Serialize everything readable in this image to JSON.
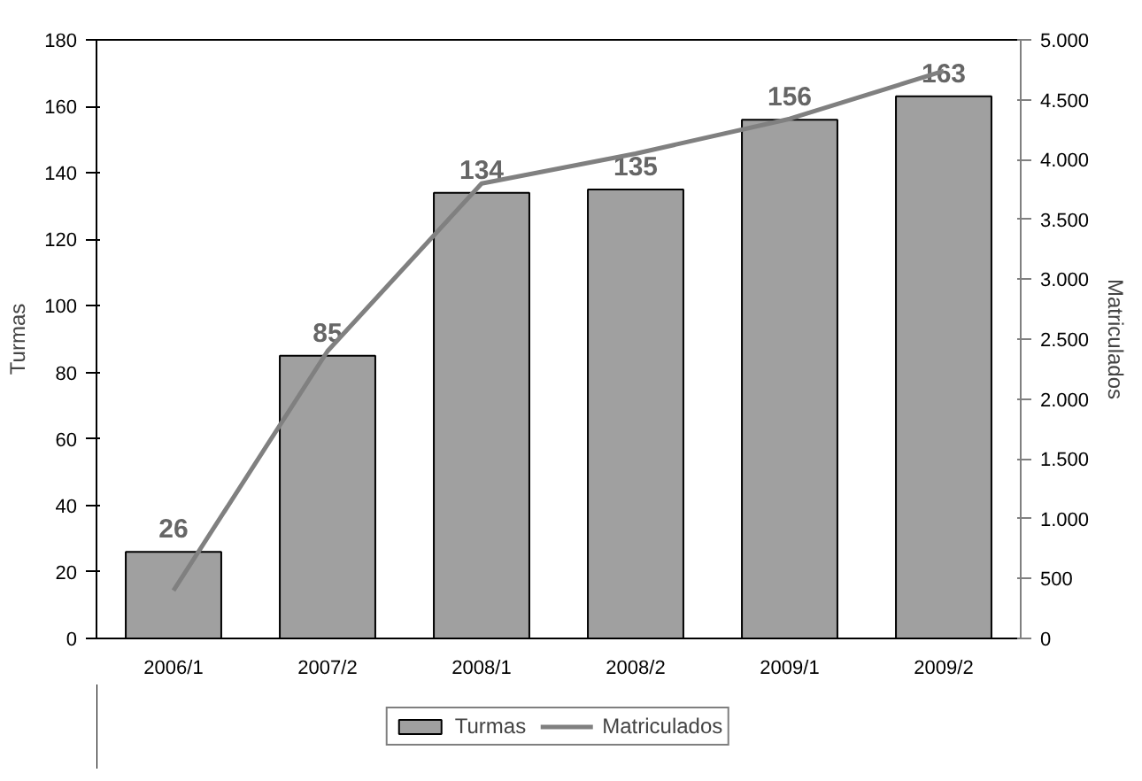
{
  "chart_data": {
    "type": "bar",
    "categories": [
      "2006/1",
      "2007/2",
      "2008/1",
      "2008/2",
      "2009/1",
      "2009/2"
    ],
    "series": [
      {
        "name": "Turmas",
        "color": "#a0a0a0",
        "values": [
          26,
          85,
          134,
          135,
          156,
          163
        ],
        "value_labels": [
          "26",
          "85",
          "134",
          "135",
          "156",
          "163"
        ]
      },
      {
        "name": "Matriculados",
        "type": "line",
        "axis": "y2",
        "color": "#808080",
        "values": [
          400,
          2400,
          3800,
          4050,
          4340,
          4740
        ]
      }
    ],
    "ylabel": "Turmas",
    "y2label": "Matriculados",
    "ylim": [
      0,
      180
    ],
    "yticks": [
      0,
      20,
      40,
      60,
      80,
      100,
      120,
      140,
      160,
      180
    ],
    "y2lim": [
      0,
      5000
    ],
    "y2ticks": [
      0,
      500,
      {
        "value": 1000,
        "label": "1.000"
      },
      {
        "value": 1500,
        "label": "1.500"
      },
      {
        "value": 2000,
        "label": "2.000"
      },
      {
        "value": 2500,
        "label": "2.500"
      },
      {
        "value": 3000,
        "label": "3.000"
      },
      {
        "value": 3500,
        "label": "3.500"
      },
      {
        "value": 4000,
        "label": "4.000"
      },
      {
        "value": 4500,
        "label": "4.500"
      },
      {
        "value": 5000,
        "label": "5.000"
      }
    ],
    "legend": "bottom",
    "grid": false,
    "marker": "none",
    "line_style": "solid"
  }
}
